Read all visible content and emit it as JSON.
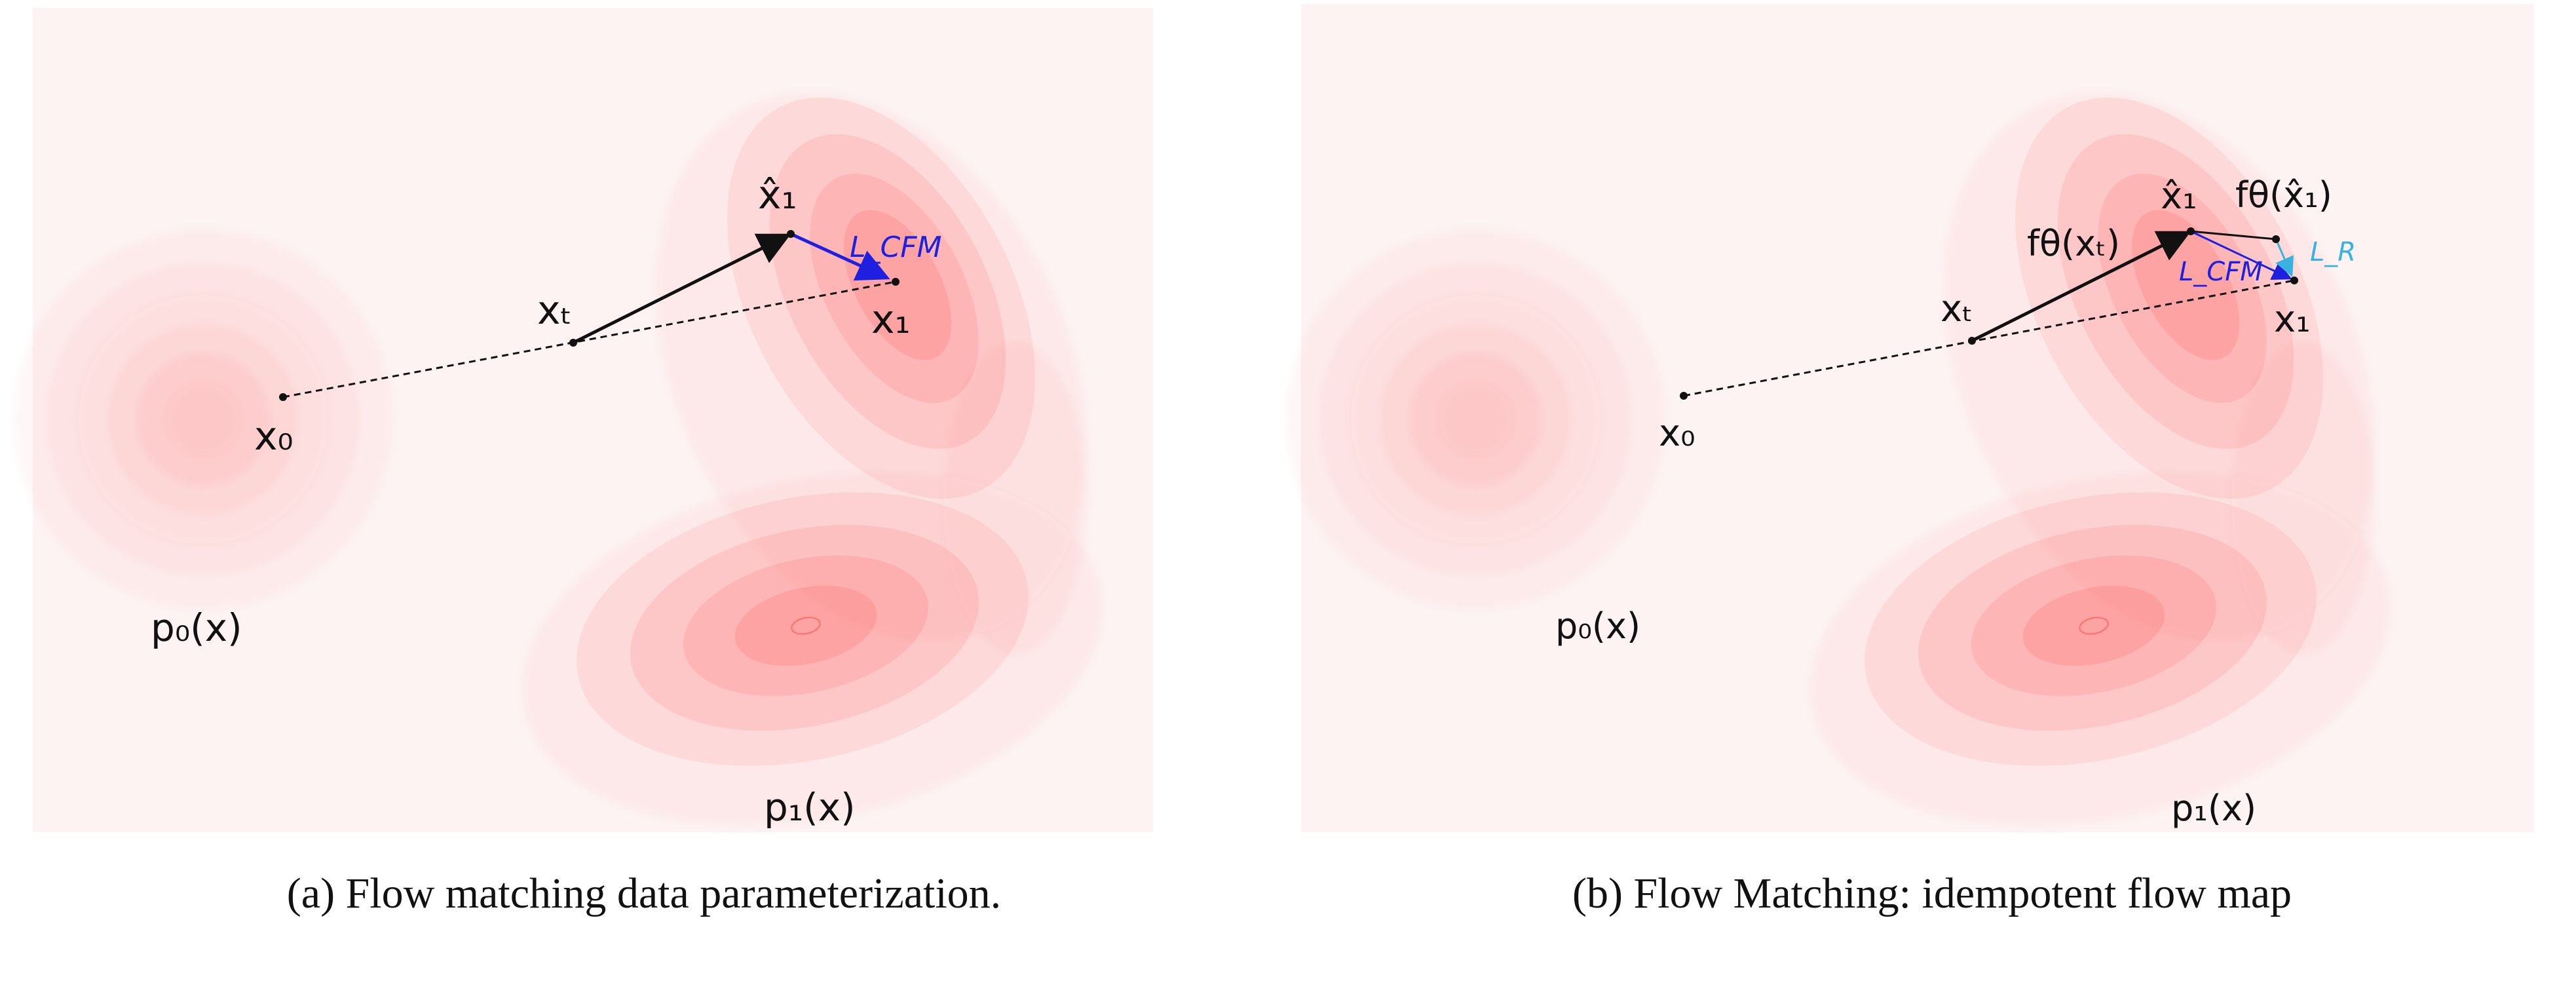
{
  "panels": [
    {
      "labels": {
        "x0": "x₀",
        "xt": "xₜ",
        "x1hat": "x̂₁",
        "x1": "x₁",
        "loss_cfm": "L_CFM",
        "p0": "p₀(x)",
        "p1": "p₁(x)"
      },
      "caption": "(a) Flow matching data parameterization."
    },
    {
      "labels": {
        "x0": "x₀",
        "xt": "xₜ",
        "x1hat": "x̂₁",
        "x1": "x₁",
        "f_theta_xt": "fθ(xₜ)",
        "f_theta_x1hat": "fθ(x̂₁)",
        "loss_cfm": "L_CFM",
        "loss_r": "L_R",
        "p0": "p₀(x)",
        "p1": "p₁(x)"
      },
      "caption": "(b) Flow Matching: idempotent flow map"
    }
  ],
  "colors": {
    "background": "#fdf3f3",
    "density": "#ff3b3b",
    "arrow_black": "#111111",
    "arrow_blue": "#1f1fe0",
    "arrow_cyan": "#39b3dd"
  }
}
